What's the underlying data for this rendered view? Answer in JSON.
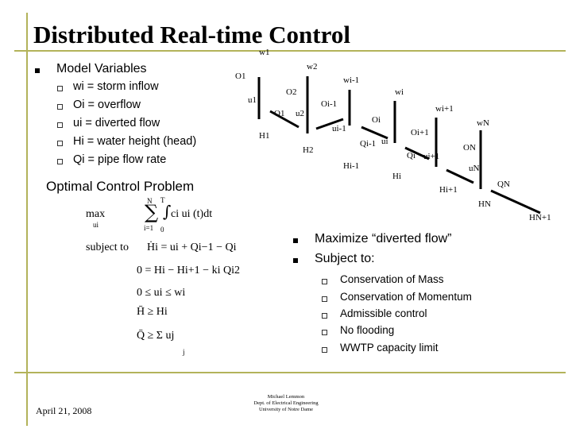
{
  "slide": {
    "title": "Distributed Real-time Control",
    "bullet_main": "Model Variables",
    "variables": [
      "wi = storm inflow",
      "Oi = overflow",
      "ui = diverted flow",
      "Hi = water height (head)",
      "Qi = pipe flow rate"
    ],
    "section_heading": "Optimal Control Problem",
    "right_bullets": [
      "Maximize “diverted flow”",
      "Subject to:"
    ],
    "constraints": [
      "Conservation of Mass",
      "Conservation of Momentum",
      "Admissible control",
      "No flooding",
      "WWTP capacity limit"
    ],
    "date": "April 21, 2008",
    "author_lines": [
      "Michael Lemmon",
      "Dept. of Electrical Engineering",
      "University of Notre Dame"
    ]
  },
  "diagram": {
    "labels": [
      "w1",
      "w2",
      "wi-1",
      "wi",
      "wi+1",
      "wN",
      "O1",
      "O2",
      "Oi-1",
      "Oi",
      "Oi+1",
      "ON",
      "u1",
      "u2",
      "ui-1",
      "ui",
      "ui+1",
      "uN",
      "Q1",
      "Qi-1",
      "Qi",
      "QN",
      "H1",
      "H2",
      "Hi-1",
      "Hi",
      "Hi+1",
      "HN",
      "HN+1"
    ]
  },
  "math": {
    "max_word": "max",
    "max_sub": "ui",
    "sum_top": "N",
    "sum_bottom": "i=1",
    "int_top": "T",
    "int_bottom": "0",
    "objective": "ci ui (t)dt",
    "subject_to": "subject to",
    "eq1": "Ḣi = ui + Qi−1 − Qi",
    "eq2": "0 = Hi − Hi+1 − ki Qi2",
    "eq3": "0 ≤ ui ≤ wi",
    "eq4": "H̄ ≥ Hi",
    "eq5": "Q̄ ≥ Σ uj",
    "eq5_sub": "j"
  }
}
